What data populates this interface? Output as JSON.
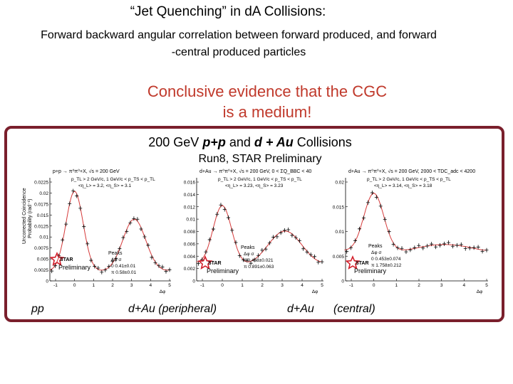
{
  "slide": {
    "title": "“Jet Quenching” in dA Collisions:",
    "subtitle_line1": "Forward backward angular correlation between forward produced, and forward",
    "subtitle_line2": "-central produced particles",
    "conclusion_line1": "Conclusive evidence that the CGC",
    "conclusion_line2": "is a medium!"
  },
  "figure": {
    "heading_prefix": "200 GeV ",
    "heading_pp": "p+p",
    "heading_mid": " and ",
    "heading_dau": "d + Au",
    "heading_suffix": " Collisions",
    "subheading": "Run8, STAR Preliminary",
    "ylabel_line1": "Uncorrected Coincidence",
    "ylabel_line2": "Probability (rad⁻¹)",
    "xlabel": "Δφ",
    "preliminary": "Preliminary",
    "star": "STAR",
    "panels": [
      {
        "reaction": "p+p → π⁰π⁰+X, √s = 200 GeV",
        "cut1": "p_TL > 2 GeV/c, 1 GeV/c < p_TS < p_TL",
        "cut2": "<η_L> = 3.2, <η_S> = 3.1",
        "yticks": [
          "0.0225",
          "0.02",
          "0.0175",
          "0.015",
          "0.0125",
          "0.01",
          "0.0075",
          "0.005",
          "0.0025",
          "0"
        ],
        "xticks": [
          "-1",
          "0",
          "1",
          "2",
          "3",
          "4",
          "5"
        ],
        "peaks_title": "Peaks",
        "peaks_header": "Δφ   σ",
        "peaks_row1": "0   0.41±0.01",
        "peaks_row2": "π   0.58±0.01"
      },
      {
        "reaction": "d+Au → π⁰π⁰+X, √s = 200 GeV, 0 < ΣQ_BBC < 40",
        "cut1": "p_TL > 2 GeV/c, 1 GeV/c < p_TS < p_TL",
        "cut2": "<η_L> = 3.23, <η_S> = 3.23",
        "yticks": [
          "0.016",
          "0.014",
          "0.012",
          "0.01",
          "0.008",
          "0.006",
          "0.004",
          "0.002",
          "0"
        ],
        "xticks": [
          "-1",
          "0",
          "1",
          "2",
          "3",
          "4",
          "5"
        ],
        "peaks_title": "Peaks",
        "peaks_header": "Δφ   σ",
        "peaks_row1": "0   0.458±0.021",
        "peaks_row2": "π   0.891±0.063"
      },
      {
        "reaction": "d+Au → π⁰π⁰+X, √s = 200 GeV, 2000 < TDC_adc < 4200",
        "cut1": "p_TL > 2 GeV/c, 1 GeV/c < p_TS < p_TL",
        "cut2": "<η_L> = 3.14, <η_S> = 3.18",
        "yticks": [
          "0.02",
          "0.015",
          "0.01",
          "0.005",
          "0"
        ],
        "xticks": [
          "-1",
          "0",
          "1",
          "2",
          "3",
          "4",
          "5"
        ],
        "peaks_title": "Peaks",
        "peaks_header": "Δφ   σ",
        "peaks_row1": "0   0.453±0.074",
        "peaks_row2": "π   1.758±0.212"
      }
    ],
    "bottom_labels": {
      "pp": "pp",
      "peripheral": "d+Au (peripheral)",
      "central_a": "d+Au",
      "central_b": "(central)"
    }
  },
  "colors": {
    "conclusion": "#c0392b",
    "frame": "#7a1f2c",
    "fit_curve": "#d63a3a",
    "star_red": "#d31f2b",
    "star_blue": "#1a3f9c"
  }
}
